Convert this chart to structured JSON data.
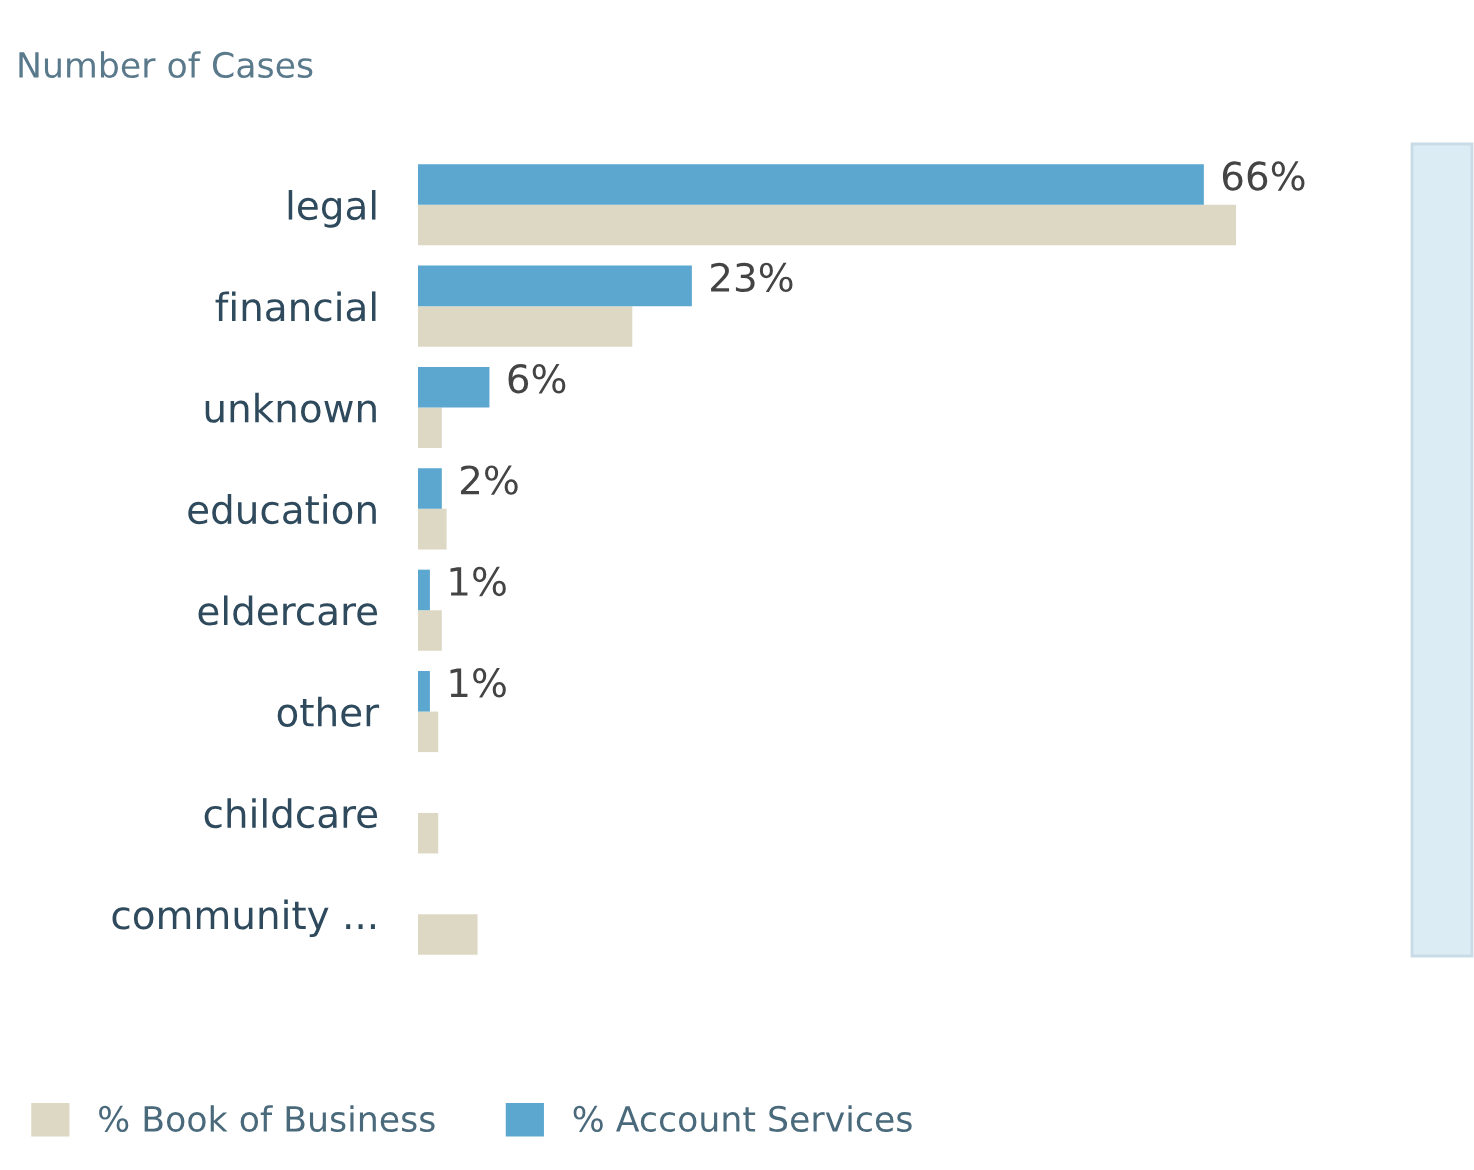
{
  "chart_data": {
    "type": "bar",
    "orientation": "horizontal",
    "title": "Number of Cases",
    "legend": "bottom left",
    "categories": [
      "legal",
      "financial",
      "unknown",
      "education",
      "eldercare",
      "other",
      "childcare",
      "community ..."
    ],
    "series": [
      {
        "name": "% Book of Business",
        "color": "#dcd8c3",
        "values": [
          68.7,
          18,
          2,
          2.4,
          2,
          1.7,
          1.7,
          5
        ]
      },
      {
        "name": "% Account Services",
        "color": "#5ba7cf",
        "values": [
          66,
          23,
          6,
          2,
          1,
          1,
          null,
          null
        ],
        "value_labels": [
          "66%",
          "23%",
          "6%",
          "2%",
          "1%",
          "1%",
          null,
          null
        ]
      }
    ]
  }
}
